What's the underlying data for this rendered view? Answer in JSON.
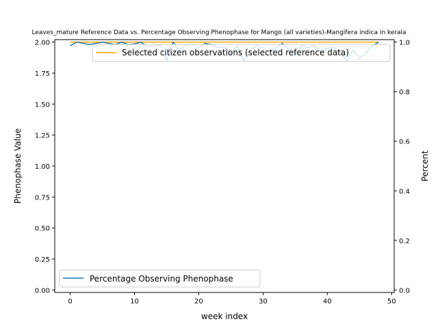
{
  "chart_data": {
    "type": "line",
    "title": "Leaves_mature Reference Data vs. Percentage Observing Phenophase for Mango (all varieties)-Mangifera indica in kerala",
    "xlabel": "week index",
    "ylabel_left": "Phenophase Value",
    "ylabel_right": "Percent",
    "xlim": [
      -2.4,
      50.4
    ],
    "ylim_left": [
      -0.02,
      2.02
    ],
    "ylim_right": [
      -0.01,
      1.01
    ],
    "x_ticks": [
      0,
      10,
      20,
      30,
      40,
      50
    ],
    "x_tick_labels": [
      "0",
      "10",
      "20",
      "30",
      "40",
      "50"
    ],
    "y_left_ticks": [
      0,
      0.25,
      0.5,
      0.75,
      1.0,
      1.25,
      1.5,
      1.75,
      2.0
    ],
    "y_left_tick_labels": [
      "0.00",
      "0.25",
      "0.50",
      "0.75",
      "1.00",
      "1.25",
      "1.50",
      "1.75",
      "2.00"
    ],
    "y_right_ticks": [
      0,
      0.2,
      0.4,
      0.6,
      0.8,
      1.0
    ],
    "y_right_tick_labels": [
      "0.0",
      "0.2",
      "0.4",
      "0.6",
      "0.8",
      "1.0"
    ],
    "grid": false,
    "series": [
      {
        "name": "Selected citizen observations (selected reference data)",
        "axis": "left",
        "color": "#ffa500",
        "x": [
          0,
          48
        ],
        "values": [
          2.0,
          2.0
        ]
      },
      {
        "name": "Percentage Observing Phenophase",
        "axis": "right",
        "color": "#1f77b4",
        "x": [
          0,
          1,
          2,
          3,
          4,
          5,
          6,
          7,
          8,
          9,
          10,
          11,
          12,
          13,
          14,
          15,
          16,
          17,
          18,
          19,
          20,
          21,
          22,
          23,
          24,
          25,
          26,
          27,
          28,
          29,
          30,
          31,
          32,
          33,
          34,
          35,
          36,
          37,
          38,
          39,
          40,
          41,
          42,
          43,
          44,
          45,
          46,
          47,
          48
        ],
        "values": [
          0.985,
          1.0,
          0.995,
          0.99,
          0.995,
          1.0,
          0.995,
          0.99,
          1.0,
          0.99,
          0.993,
          1.0,
          0.983,
          0.983,
          0.99,
          0.925,
          1.0,
          0.967,
          0.99,
          0.99,
          0.978,
          0.995,
          0.99,
          0.978,
          0.98,
          0.95,
          0.985,
          0.925,
          0.97,
          0.985,
          0.978,
          0.962,
          0.975,
          0.995,
          0.97,
          0.95,
          0.985,
          0.978,
          0.985,
          0.96,
          0.975,
          0.978,
          0.958,
          0.925,
          0.967,
          0.933,
          0.955,
          0.985,
          1.0
        ]
      }
    ],
    "legends": [
      {
        "placement": "upper-right",
        "entries": [
          "Selected citizen observations (selected reference data)"
        ]
      },
      {
        "placement": "lower-left",
        "entries": [
          "Percentage Observing Phenophase"
        ]
      }
    ]
  }
}
